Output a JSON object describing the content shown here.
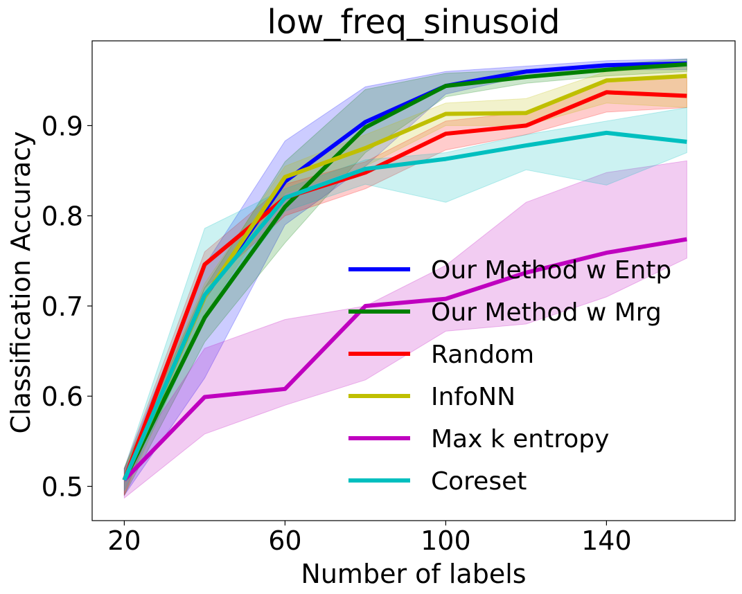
{
  "chart_data": {
    "type": "line",
    "title": "low_freq_sinusoid",
    "xlabel": "Number of labels",
    "ylabel": "Classification Accuracy",
    "x": [
      20,
      40,
      60,
      80,
      100,
      120,
      140,
      160
    ],
    "xlim": [
      12,
      172
    ],
    "ylim": [
      0.462,
      0.994
    ],
    "xticks": [
      20,
      60,
      100,
      140
    ],
    "xtick_labels": [
      "20",
      "60",
      "100",
      "140"
    ],
    "yticks": [
      0.5,
      0.6,
      0.7,
      0.8,
      0.9
    ],
    "ytick_labels": [
      "0.5",
      "0.6",
      "0.7",
      "0.8",
      "0.9"
    ],
    "grid": false,
    "legend_position": "lower-right",
    "series": [
      {
        "name": "Our Method w Entp",
        "color": "#0000ff",
        "values": [
          0.507,
          0.71,
          0.838,
          0.904,
          0.944,
          0.96,
          0.967,
          0.969
        ],
        "lower": [
          0.49,
          0.62,
          0.79,
          0.855,
          0.935,
          0.955,
          0.962,
          0.962
        ],
        "upper": [
          0.52,
          0.745,
          0.883,
          0.943,
          0.96,
          0.966,
          0.972,
          0.974
        ]
      },
      {
        "name": "Our Method w Mrg",
        "color": "#008000",
        "values": [
          0.507,
          0.687,
          0.81,
          0.898,
          0.944,
          0.954,
          0.962,
          0.968
        ],
        "lower": [
          0.49,
          0.66,
          0.77,
          0.87,
          0.932,
          0.947,
          0.955,
          0.96
        ],
        "upper": [
          0.52,
          0.72,
          0.86,
          0.94,
          0.958,
          0.962,
          0.968,
          0.974
        ]
      },
      {
        "name": "Random",
        "color": "#ff0000",
        "values": [
          0.507,
          0.746,
          0.82,
          0.848,
          0.891,
          0.9,
          0.937,
          0.933
        ],
        "lower": [
          0.49,
          0.72,
          0.8,
          0.83,
          0.873,
          0.89,
          0.915,
          0.92
        ],
        "upper": [
          0.52,
          0.76,
          0.835,
          0.86,
          0.905,
          0.915,
          0.952,
          0.953
        ]
      },
      {
        "name": "InfoNN",
        "color": "#bfbf00",
        "values": [
          0.507,
          0.71,
          0.843,
          0.875,
          0.913,
          0.914,
          0.95,
          0.955
        ],
        "lower": [
          0.49,
          0.69,
          0.825,
          0.855,
          0.9,
          0.9,
          0.925,
          0.92
        ],
        "upper": [
          0.52,
          0.725,
          0.855,
          0.89,
          0.925,
          0.93,
          0.96,
          0.965
        ]
      },
      {
        "name": "Max k entropy",
        "color": "#bf00bf",
        "values": [
          0.507,
          0.599,
          0.608,
          0.7,
          0.708,
          0.737,
          0.759,
          0.774
        ],
        "lower": [
          0.487,
          0.558,
          0.59,
          0.618,
          0.672,
          0.68,
          0.71,
          0.753
        ],
        "upper": [
          0.52,
          0.653,
          0.685,
          0.7,
          0.745,
          0.815,
          0.848,
          0.861
        ]
      },
      {
        "name": "Coreset",
        "color": "#00bfbf",
        "values": [
          0.507,
          0.712,
          0.82,
          0.852,
          0.863,
          0.878,
          0.892,
          0.882
        ],
        "lower": [
          0.495,
          0.685,
          0.805,
          0.835,
          0.815,
          0.851,
          0.834,
          0.87
        ],
        "upper": [
          0.52,
          0.786,
          0.83,
          0.862,
          0.87,
          0.89,
          0.905,
          0.92
        ]
      }
    ]
  }
}
